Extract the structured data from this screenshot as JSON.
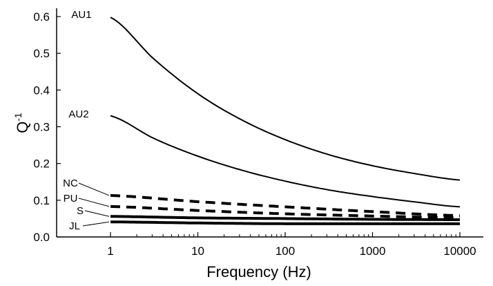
{
  "chart_data": {
    "type": "line",
    "xlabel": "Frequency (Hz)",
    "ylabel_base": "Q",
    "ylabel_exp": "-1",
    "x_scale": "log",
    "xlim": [
      1,
      10000
    ],
    "ylim": [
      0,
      0.6
    ],
    "x_ticks": [
      1,
      10,
      100,
      1000,
      10000
    ],
    "x_tick_labels": [
      "1",
      "10",
      "100",
      "1000",
      "10000"
    ],
    "y_ticks": [
      0.0,
      0.1,
      0.2,
      0.3,
      0.4,
      0.5,
      0.6
    ],
    "y_tick_labels": [
      "0.0",
      "0.1",
      "0.2",
      "0.3",
      "0.4",
      "0.5",
      "0.6"
    ],
    "grid": false,
    "legend": "none (series labeled directly at left end of each curve)",
    "series": [
      {
        "name": "AU1",
        "style": "solid",
        "color": "#000000",
        "x": [
          1,
          3.16,
          10,
          31.6,
          100,
          316,
          1000,
          3162,
          10000
        ],
        "y": [
          0.598,
          0.484,
          0.39,
          0.319,
          0.265,
          0.224,
          0.194,
          0.172,
          0.155
        ]
      },
      {
        "name": "AU2",
        "style": "solid",
        "color": "#000000",
        "x": [
          1,
          3.16,
          10,
          31.6,
          100,
          316,
          1000,
          3162,
          10000
        ],
        "y": [
          0.33,
          0.268,
          0.22,
          0.182,
          0.152,
          0.128,
          0.11,
          0.095,
          0.082
        ]
      },
      {
        "name": "NC",
        "style": "dashed",
        "color": "#000000",
        "x": [
          1,
          10,
          100,
          1000,
          10000
        ],
        "y": [
          0.113,
          0.096,
          0.082,
          0.069,
          0.058
        ]
      },
      {
        "name": "PU",
        "style": "dashed",
        "color": "#000000",
        "x": [
          1,
          10,
          100,
          1000,
          10000
        ],
        "y": [
          0.083,
          0.072,
          0.063,
          0.057,
          0.052
        ]
      },
      {
        "name": "S",
        "style": "solid",
        "color": "#000000",
        "x": [
          1,
          10,
          100,
          1000,
          10000
        ],
        "y": [
          0.056,
          0.052,
          0.05,
          0.048,
          0.047
        ]
      },
      {
        "name": "JL",
        "style": "solid",
        "color": "#000000",
        "x": [
          1,
          10,
          100,
          1000,
          10000
        ],
        "y": [
          0.041,
          0.038,
          0.036,
          0.036,
          0.036
        ]
      }
    ]
  }
}
